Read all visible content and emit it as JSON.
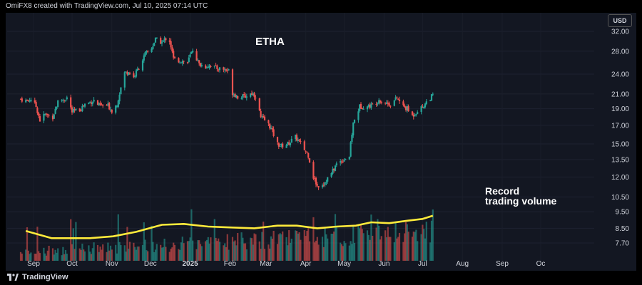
{
  "header": {
    "credit": "OmiFX8 created with TradingView.com, Jul 10, 2025 07:14 UTC"
  },
  "footer": {
    "brand": "TradingView",
    "logo_icon": "tradingview-logo-icon"
  },
  "currency_badge": "USD",
  "colors": {
    "up": "#26a69a",
    "down": "#ef5350",
    "ma_line": "#ffeb3b",
    "background": "#131722",
    "text": "#d1d4dc"
  },
  "chart_data": {
    "type": "candlestick",
    "title": "ETHA",
    "annotation": [
      "Record",
      "trading volume"
    ],
    "y_axis": {
      "scale": "log",
      "position": "right",
      "ticks": [
        "32.00",
        "28.00",
        "24.00",
        "21.00",
        "19.00",
        "17.00",
        "15.00",
        "13.50",
        "12.00",
        "10.50",
        "9.50",
        "8.50",
        "7.70"
      ]
    },
    "x_axis": {
      "ticks": [
        {
          "label": "Sep",
          "bold": false
        },
        {
          "label": "Oct",
          "bold": false
        },
        {
          "label": "Nov",
          "bold": false
        },
        {
          "label": "Dec",
          "bold": false
        },
        {
          "label": "2025",
          "bold": true
        },
        {
          "label": "Feb",
          "bold": false
        },
        {
          "label": "Mar",
          "bold": false
        },
        {
          "label": "Apr",
          "bold": false
        },
        {
          "label": "May",
          "bold": false
        },
        {
          "label": "Jun",
          "bold": false
        },
        {
          "label": "Jul",
          "bold": false
        },
        {
          "label": "Aug",
          "bold": false
        },
        {
          "label": "Sep",
          "bold": false
        },
        {
          "label": "Oc",
          "bold": false
        }
      ]
    },
    "price_path": [
      [
        "2024-08-22",
        20.3
      ],
      [
        "2024-08-27",
        20.0
      ],
      [
        "2024-08-30",
        20.3
      ],
      [
        "2024-09-03",
        19.3
      ],
      [
        "2024-09-06",
        17.6
      ],
      [
        "2024-09-10",
        18.3
      ],
      [
        "2024-09-16",
        18.0
      ],
      [
        "2024-09-20",
        19.9
      ],
      [
        "2024-09-27",
        20.5
      ],
      [
        "2024-10-01",
        18.6
      ],
      [
        "2024-10-07",
        18.9
      ],
      [
        "2024-10-11",
        19.6
      ],
      [
        "2024-10-18",
        20.1
      ],
      [
        "2024-10-22",
        19.4
      ],
      [
        "2024-10-25",
        19.4
      ],
      [
        "2024-10-29",
        19.4
      ],
      [
        "2024-11-01",
        18.8
      ],
      [
        "2024-11-05",
        19.6
      ],
      [
        "2024-11-11",
        24.2
      ],
      [
        "2024-11-14",
        24.4
      ],
      [
        "2024-11-18",
        23.5
      ],
      [
        "2024-11-22",
        25.1
      ],
      [
        "2024-11-27",
        27.4
      ],
      [
        "2024-12-02",
        28.6
      ],
      [
        "2024-12-05",
        30.3
      ],
      [
        "2024-12-10",
        29.7
      ],
      [
        "2024-12-13",
        30.5
      ],
      [
        "2024-12-16",
        30.1
      ],
      [
        "2024-12-19",
        26.6
      ],
      [
        "2024-12-23",
        26.3
      ],
      [
        "2024-12-30",
        26.0
      ],
      [
        "2025-01-03",
        28.3
      ],
      [
        "2025-01-08",
        25.6
      ],
      [
        "2025-01-13",
        25.3
      ],
      [
        "2025-01-17",
        25.5
      ],
      [
        "2025-01-21",
        25.0
      ],
      [
        "2025-01-27",
        24.8
      ],
      [
        "2025-01-31",
        24.5
      ],
      [
        "2025-02-03",
        21.2
      ],
      [
        "2025-02-07",
        20.6
      ],
      [
        "2025-02-12",
        20.6
      ],
      [
        "2025-02-18",
        21.1
      ],
      [
        "2025-02-21",
        20.7
      ],
      [
        "2025-02-25",
        17.9
      ],
      [
        "2025-02-28",
        17.6
      ],
      [
        "2025-03-04",
        16.9
      ],
      [
        "2025-03-10",
        15.0
      ],
      [
        "2025-03-13",
        14.8
      ],
      [
        "2025-03-18",
        15.0
      ],
      [
        "2025-03-24",
        15.7
      ],
      [
        "2025-03-28",
        15.0
      ],
      [
        "2025-04-03",
        13.9
      ],
      [
        "2025-04-07",
        12.0
      ],
      [
        "2025-04-10",
        11.3
      ],
      [
        "2025-04-15",
        11.5
      ],
      [
        "2025-04-21",
        12.3
      ],
      [
        "2025-04-25",
        13.1
      ],
      [
        "2025-04-30",
        13.5
      ],
      [
        "2025-05-05",
        13.8
      ],
      [
        "2025-05-08",
        17.2
      ],
      [
        "2025-05-13",
        19.3
      ],
      [
        "2025-05-19",
        19.3
      ],
      [
        "2025-05-23",
        19.5
      ],
      [
        "2025-05-28",
        20.2
      ],
      [
        "2025-06-02",
        19.8
      ],
      [
        "2025-06-06",
        19.6
      ],
      [
        "2025-06-11",
        20.4
      ],
      [
        "2025-06-16",
        19.3
      ],
      [
        "2025-06-19",
        19.0
      ],
      [
        "2025-06-23",
        18.1
      ],
      [
        "2025-06-27",
        18.8
      ],
      [
        "2025-07-01",
        19.2
      ],
      [
        "2025-07-03",
        19.7
      ],
      [
        "2025-07-09",
        20.8
      ]
    ],
    "moving_average": [
      [
        "2024-08-26",
        8.35
      ],
      [
        "2024-09-15",
        7.95
      ],
      [
        "2024-10-15",
        7.95
      ],
      [
        "2024-11-02",
        8.05
      ],
      [
        "2024-11-20",
        8.3
      ],
      [
        "2024-12-10",
        8.7
      ],
      [
        "2024-12-27",
        8.75
      ],
      [
        "2025-01-15",
        8.6
      ],
      [
        "2025-02-01",
        8.55
      ],
      [
        "2025-02-20",
        8.5
      ],
      [
        "2025-03-10",
        8.65
      ],
      [
        "2025-03-25",
        8.65
      ],
      [
        "2025-04-10",
        8.5
      ],
      [
        "2025-04-25",
        8.6
      ],
      [
        "2025-05-10",
        8.65
      ],
      [
        "2025-05-22",
        8.85
      ],
      [
        "2025-06-05",
        8.8
      ],
      [
        "2025-06-20",
        8.95
      ],
      [
        "2025-07-01",
        9.05
      ],
      [
        "2025-07-09",
        9.25
      ]
    ]
  }
}
